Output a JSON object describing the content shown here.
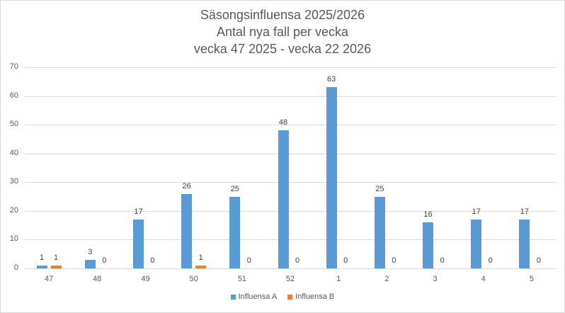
{
  "chart_data": {
    "type": "bar",
    "title": "Säsongsinfluensa 2025/2026",
    "subtitle": [
      "Antal nya fall per vecka",
      "vecka 47 2025 - vecka 22 2026"
    ],
    "xlabel": "",
    "ylabel": "",
    "categories": [
      "47",
      "48",
      "49",
      "50",
      "51",
      "52",
      "1",
      "2",
      "3",
      "4",
      "5"
    ],
    "series": [
      {
        "name": "Influensa A",
        "color": "#5b9bd5",
        "values": [
          1,
          3,
          17,
          26,
          25,
          48,
          63,
          25,
          16,
          17,
          17
        ]
      },
      {
        "name": "Influensa B",
        "color": "#ed7d31",
        "values": [
          1,
          0,
          0,
          1,
          0,
          0,
          0,
          0,
          0,
          0,
          0
        ]
      }
    ],
    "ylim": [
      0,
      70
    ],
    "yticks": [
      0,
      10,
      20,
      30,
      40,
      50,
      60,
      70
    ],
    "grid": true,
    "legend_position": "bottom",
    "data_labels": true
  },
  "title_lines": [
    "Säsongsinfluensa 2025/2026",
    "Antal nya fall per vecka",
    "vecka 47 2025 - vecka 22 2026"
  ]
}
